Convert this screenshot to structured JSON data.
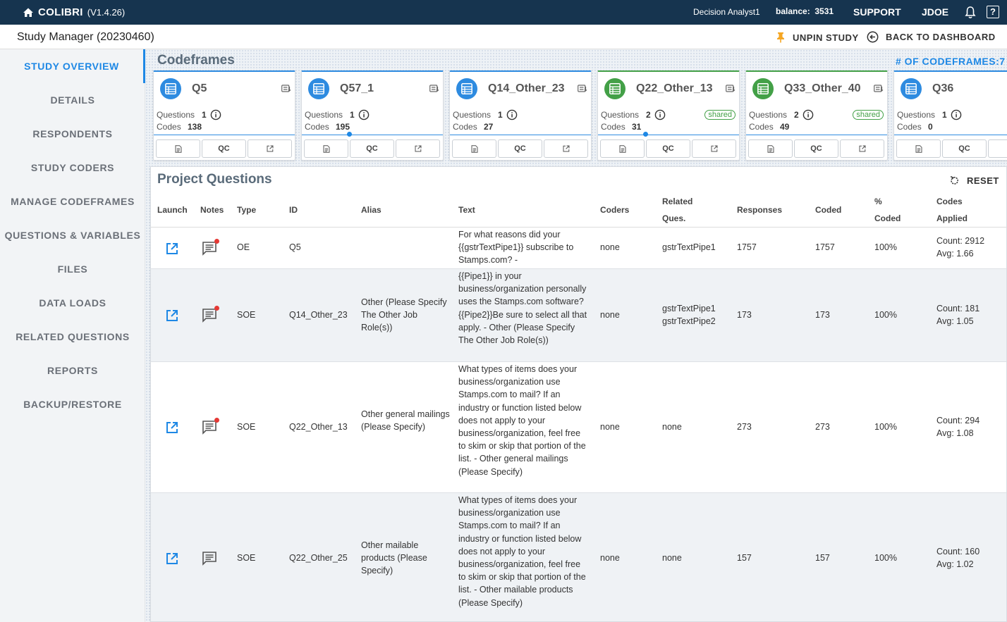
{
  "app": {
    "name": "COLIBRI",
    "version": "(V1.4.26)",
    "user_role": "Decision Analyst1",
    "balance_label": "balance:",
    "balance_value": "3531",
    "support": "SUPPORT",
    "user": "JDOE",
    "help": "?"
  },
  "header": {
    "title": "Study Manager (20230460)",
    "unpin": "UNPIN STUDY",
    "back": "BACK TO DASHBOARD"
  },
  "sidebar": {
    "items": [
      {
        "label": "STUDY OVERVIEW"
      },
      {
        "label": "DETAILS"
      },
      {
        "label": "RESPONDENTS"
      },
      {
        "label": "STUDY CODERS"
      },
      {
        "label": "MANAGE CODEFRAMES"
      },
      {
        "label": "QUESTIONS & VARIABLES"
      },
      {
        "label": "FILES"
      },
      {
        "label": "DATA LOADS"
      },
      {
        "label": "RELATED QUESTIONS"
      },
      {
        "label": "REPORTS"
      },
      {
        "label": "BACKUP/RESTORE"
      }
    ]
  },
  "codeframes": {
    "title": "Codeframes",
    "count_label": "# OF CODEFRAMES:7",
    "questions_label": "Questions",
    "codes_label": "Codes",
    "shared_label": "shared",
    "qc_label": "QC",
    "items": [
      {
        "name": "Q5",
        "questions": "1",
        "codes": "138",
        "color": "#2e8be0"
      },
      {
        "name": "Q57_1",
        "questions": "1",
        "codes": "195",
        "color": "#2e8be0"
      },
      {
        "name": "Q14_Other_23",
        "questions": "1",
        "codes": "27",
        "color": "#2e8be0"
      },
      {
        "name": "Q22_Other_13",
        "questions": "2",
        "codes": "31",
        "color": "#43a047"
      },
      {
        "name": "Q33_Other_40",
        "questions": "2",
        "codes": "49",
        "color": "#43a047"
      },
      {
        "name": "Q36",
        "questions": "1",
        "codes": "0",
        "color": "#2e8be0"
      }
    ]
  },
  "questions": {
    "title": "Project Questions",
    "reset": "RESET",
    "headers": {
      "launch": "Launch",
      "notes": "Notes",
      "type": "Type",
      "id": "ID",
      "alias": "Alias",
      "text": "Text",
      "coders": "Coders",
      "related_1": "Related",
      "related_2": "Ques.",
      "responses": "Responses",
      "coded": "Coded",
      "pct_1": "%",
      "pct_2": "Coded",
      "applied_1": "Codes",
      "applied_2": "Applied"
    },
    "rows": [
      {
        "type": "OE",
        "id": "Q5",
        "alias": "",
        "text": "For what reasons did your {{gstrTextPipe1}} subscribe to Stamps.com? -",
        "coders": "none",
        "related": "gstrTextPipe1",
        "responses": "1757",
        "coded": "1757",
        "pct": "100%",
        "count": "Count: 2912",
        "avg": "Avg: 1.66"
      },
      {
        "type": "SOE",
        "id": "Q14_Other_23",
        "alias": "Other (Please Specify The Other Job Role(s))",
        "text": "{{Pipe1}} in your business/organization personally uses the Stamps.com software?{{Pipe2}}Be sure to select all that apply. - Other (Please Specify The Other Job Role(s))",
        "coders": "none",
        "related": "gstrTextPipe1 gstrTextPipe2",
        "responses": "173",
        "coded": "173",
        "pct": "100%",
        "count": "Count: 181",
        "avg": "Avg: 1.05"
      },
      {
        "type": "SOE",
        "id": "Q22_Other_13",
        "alias": "Other general mailings (Please Specify)",
        "text": "What types of items does your business/organization use Stamps.com to mail? If an industry or function listed below does not apply to your business/organization, feel free to skim or skip that portion of the list. - Other general mailings (Please Specify)",
        "coders": "none",
        "related": "none",
        "responses": "273",
        "coded": "273",
        "pct": "100%",
        "count": "Count: 294",
        "avg": "Avg: 1.08"
      },
      {
        "type": "SOE",
        "id": "Q22_Other_25",
        "alias": "Other mailable products (Please Specify)",
        "text": "What types of items does your business/organization use Stamps.com to mail? If an industry or function listed below does not apply to your business/organization, feel free to skim or skip that portion of the list. - Other mailable products (Please Specify)",
        "coders": "none",
        "related": "none",
        "responses": "157",
        "coded": "157",
        "pct": "100%",
        "count": "Count: 160",
        "avg": "Avg: 1.02"
      }
    ]
  }
}
